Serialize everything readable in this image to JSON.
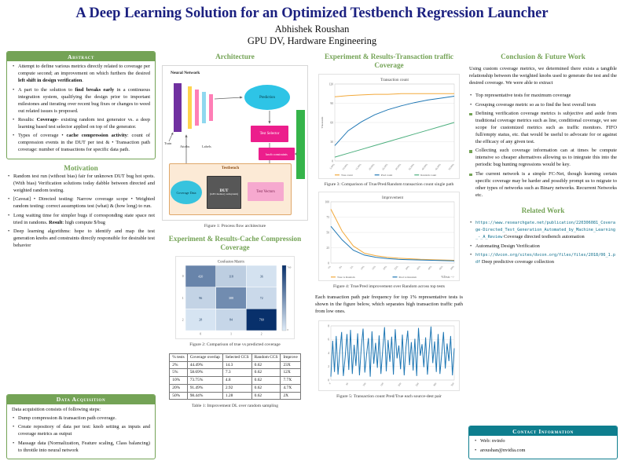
{
  "header": {
    "title": "A Deep Learning Solution for an Optimized Testbench Regression Launcher",
    "author": "Abhishek Roushan",
    "affiliation": "GPU DV, Hardware Engineering"
  },
  "colors": {
    "title_navy": "#1b2080",
    "section_green": "#74a356",
    "contact_teal": "#0e7e8e",
    "series_true_orange": "#f2a93b",
    "series_pred_blue": "#1f77b4",
    "series_random_green": "#4caf7e",
    "heatmap_dark_blue": "#08306b"
  },
  "abstract": {
    "heading": "Abstract",
    "items": [
      {
        "pre": "Attempt to define various metrics directly related to coverage per compute second; an improvement on which furthers the desired ",
        "bold": "left shift in design verification",
        "post": "."
      },
      {
        "pre": "A part to the solution to ",
        "bold": "find breaks early",
        "post": " in a continuous integration system, qualifying the design prior to important milestones and iterating over recent bug fixes or changes to weed out related issues is proposed."
      },
      {
        "pre": "Results: ",
        "bold": "Coverage",
        "post": "- existing random test generator vs. a deep learning based test selector applied on top of the generator."
      },
      {
        "pre": "Types of coverage • ",
        "bold": "cache compression activity",
        "post": ": count of compression events in the DUT per test & • Transaction path coverage: number of transactions for specific data path."
      }
    ]
  },
  "motivation": {
    "heading": "Motivation",
    "items": [
      {
        "pre": "Random test run (without bias) fair for unknown DUT bug hot spots. (With bias) Verification solutions today dabble between directed and weighted random testing.",
        "bold": "",
        "post": ""
      },
      {
        "pre": "[Caveat] • Directed testing: Narrow coverage scope • Weighted random testing: correct assumptions test (what) & (how long) to run.",
        "bold": "",
        "post": ""
      },
      {
        "pre": "Long waiting time for simpler bugs if corresponding state space not tried in randoms. ",
        "bold": "Result",
        "post": ": high compute $/bug"
      },
      {
        "pre": "Deep learning algorithms: hope to identify and map the test generation knobs and constraints directly responsible for desirable test behavior",
        "bold": "",
        "post": ""
      }
    ]
  },
  "data_acquisition": {
    "heading": "Data Acquisition",
    "intro": "Data acquisition consists of following steps:",
    "items": [
      "Dump compression & transaction path coverage.",
      "Create repository of data per test: knob setting as inputs and coverage metrics as output",
      "Massage data (Normalization, Feature scaling, Class balancing) to throttle into neural network"
    ]
  },
  "architecture": {
    "heading": "Architecture",
    "figure_caption": "Figure 1: Process flow architecture",
    "diagram": {
      "neural_network": "Neural Network",
      "prediction": "Prediction",
      "test_selector": "Test Selector",
      "testbench": "Testbench",
      "dut": "DUT",
      "dut_sub": "(GPU memory subsystem)",
      "test_vectors": "Test Vectors",
      "coverage_data": "Coverage Data",
      "knob_constraints": "knob constraints",
      "train": "Train",
      "attribs": "Attribs",
      "labels": "Labels"
    }
  },
  "cache_section": {
    "heading": "Experiment & Results-Cache Compression Coverage",
    "figure2_caption": "Figure 2: Comparison of true vs predicted coverage",
    "table_caption": "Table 1: Improvement DL over random sampling",
    "table": {
      "headers": [
        "% tests",
        "Coverage overlap",
        "Selected CCS",
        "Random CCS",
        "Improve"
      ],
      "rows": [
        [
          "2%",
          "44.49%",
          "14.3",
          "0.62",
          "23X"
        ],
        [
          "5%",
          "58.69%",
          "7.3",
          "0.62",
          "12X"
        ],
        [
          "10%",
          "73.75%",
          "4.8",
          "0.62",
          "7.7X"
        ],
        [
          "20%",
          "91.49%",
          "2.92",
          "0.62",
          "4.7X"
        ],
        [
          "50%",
          "98.44%",
          "1.28",
          "0.62",
          "2X"
        ]
      ]
    }
  },
  "transaction_section": {
    "heading": "Experiment & Results-Transaction traffic Coverage",
    "figure3_caption": "Figure 3: Comparison of True/Pred/Random transaction count single path",
    "figure4_caption": "Figure 4: True/Pred improvement over Random across top tests",
    "body_text": "Each transaction path pair frequency for top 1% representative tests is shown in the figure below, which separates high transaction traffic path from low ones.",
    "figure5_caption": "Figure 5: Transaction count Pred/True each source-dest pair"
  },
  "conclusion": {
    "heading": "Conclusion & Future Work",
    "intro": "Using custom coverage metrics, we determined there exists a tangible relationship between the weighted knobs used to generate the test and the desired coverage. We were able to extract",
    "items": [
      "Top representative tests for maximum coverage",
      "Grouping coverage metric so as to find the best overall tests",
      "Defining verification coverage metrics is subjective and aside from traditional coverage metrics such as line, conditional coverage, we see scope for customized metrics such as traffic monitors. FIFO full/empty status, etc. that would be useful to advocate for or against the efficacy of any given test.",
      "Collecting such coverage information can at times be compute intensive so cheaper alternatives allowing us to integrate this into the periodic bug hunting regressions would be key.",
      "The current network is a simple FC-Net, though learning certain specific coverage may be harder and possibly prompt us to migrate to other types of networks such as Binary networks. Recurrent Networks etc."
    ]
  },
  "related": {
    "heading": "Related Work",
    "items": [
      {
        "url": "https://www.researchgate.net/publication/220306081_Coverage-Directed_Test_Generation_Automated_by_Machine_Learning_-_A_Review",
        "text": "Coverage directed testbench automation"
      },
      {
        "url": "",
        "text": "Automating Design Verification"
      },
      {
        "url": "https://dvcon.org/sites/dvcon.org/files/files/2018/06_1.pdf",
        "text": "Deep predictive coverage collection"
      }
    ]
  },
  "contact": {
    "heading": "Contact Information",
    "items": [
      "Web: nvinfo",
      "aroushan@nvidia.com"
    ]
  },
  "chart_data": [
    {
      "id": "fig2",
      "type": "heatmap",
      "title": "Confusion Matrix",
      "classes": [
        "0",
        "1",
        "2"
      ],
      "values": [
        [
          420,
          118,
          36
        ],
        [
          96,
          388,
          72
        ],
        [
          28,
          84,
          760
        ]
      ]
    },
    {
      "id": "fig3",
      "type": "line",
      "title": "Transaction count",
      "ylabel": "Thousands",
      "ylim": [
        0,
        120
      ],
      "x_labels": [
        "5.00%",
        "10.00%",
        "15.00%",
        "20.00%",
        "25.00%",
        "30.00%",
        "35.00%",
        "40.00%",
        "45.00%",
        "50.00%"
      ],
      "series": [
        {
          "name": "True count",
          "color": "#f2a93b",
          "values": [
            100,
            102,
            103,
            104,
            104,
            105,
            105,
            105,
            105,
            105
          ]
        },
        {
          "name": "Pred count",
          "color": "#1f77b4",
          "values": [
            24,
            47,
            61,
            72,
            80,
            86,
            91,
            95,
            98,
            101
          ]
        },
        {
          "name": "Random count",
          "color": "#4caf7e",
          "values": [
            6,
            12,
            18,
            24,
            30,
            36,
            42,
            48,
            54,
            60
          ]
        }
      ]
    },
    {
      "id": "fig4",
      "type": "line",
      "title": "Improvement",
      "xlabel": "%Tests -->",
      "ylim": [
        0,
        100
      ],
      "x_labels": [
        "1%",
        "2%",
        "5%",
        "10%",
        "15%",
        "20%",
        "25%",
        "30%",
        "35%",
        "40%",
        "45%",
        "50%"
      ],
      "series": [
        {
          "name": "True vs Random",
          "color": "#f2a93b",
          "values": [
            88,
            52,
            28,
            16,
            12,
            9.5,
            8,
            7,
            6,
            5.5,
            5,
            4.5
          ]
        },
        {
          "name": "Pred vs Random",
          "color": "#1f77b4",
          "values": [
            60,
            38,
            21,
            13,
            9.5,
            7.5,
            6,
            5.5,
            5,
            4.5,
            4,
            3.5
          ]
        }
      ]
    },
    {
      "id": "fig5",
      "type": "line",
      "title": "",
      "ylim": [
        0,
        8
      ],
      "x_labels": [
        "0",
        "50",
        "100",
        "150",
        "200",
        "250",
        "300",
        "350"
      ],
      "series": [
        {
          "name": "Pred/True",
          "color": "#1f77b4",
          "values": [
            0.5,
            5.8,
            1.2,
            6.5,
            0.8,
            4.2,
            7.1,
            0.6,
            3.4,
            6.8,
            1.5,
            7.4,
            0.9,
            5.2,
            2.1,
            6.9,
            0.7,
            4.8,
            7.6,
            1.1,
            3.8,
            6.2,
            0.5,
            7.2,
            2.4,
            5.5,
            1.8,
            6.6,
            0.9,
            4.5,
            7.8,
            1.3,
            5.9,
            2.7,
            6.4,
            0.8,
            7.5,
            3.2,
            5.1,
            1.6,
            6.7,
            0.7,
            4.9,
            7.3,
            2.2,
            5.6,
            1.4,
            6.1,
            0.6,
            7.7,
            3.6,
            5.3,
            1.9,
            6.3,
            0.8,
            4.4,
            7.9,
            2.5,
            5.7,
            1.2,
            6.8,
            0.9,
            3.9,
            7.1,
            1.7,
            5.4,
            2.8,
            6.5,
            0.7,
            4.7
          ]
        }
      ]
    }
  ]
}
